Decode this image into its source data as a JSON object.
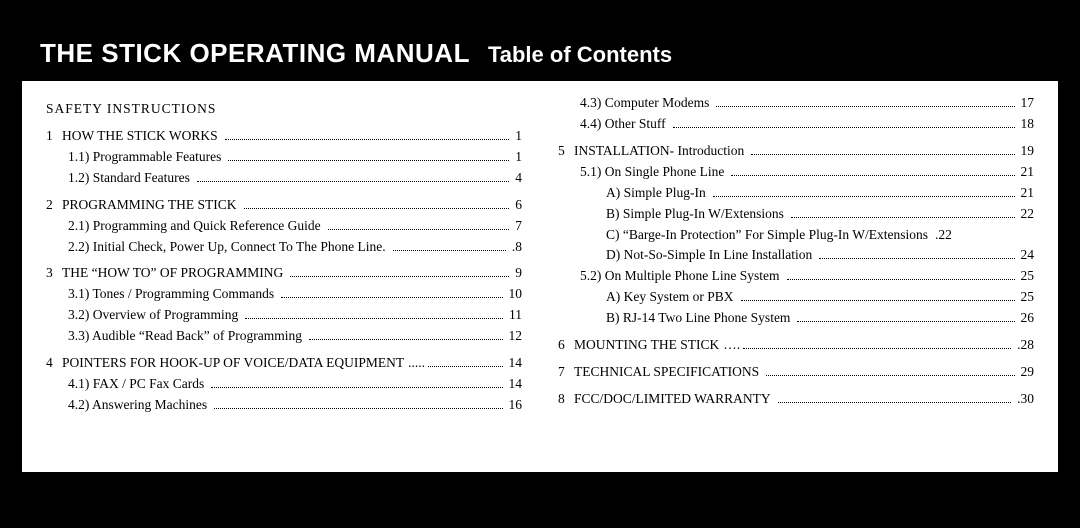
{
  "title": {
    "main": "THE STICK OPERATING MANUAL",
    "sub": "Table of Contents"
  },
  "colors": {
    "page_bg": "#ffffff",
    "outer_bg": "#000000",
    "bar_bg": "#000000",
    "bar_text": "#ffffff",
    "text": "#000000"
  },
  "typography": {
    "title_main_pt": 26,
    "title_main_weight": 900,
    "title_sub_pt": 22,
    "title_sub_weight": 700,
    "body_pt": 13.5
  },
  "left": [
    {
      "level": 0,
      "num": "",
      "label": "SAFETY  INSTRUCTIONS",
      "page": "",
      "no_leader": true,
      "safety": true
    },
    {
      "level": 0,
      "num": "1",
      "label": "HOW  THE  STICK  WORKS",
      "page": "1"
    },
    {
      "level": 1,
      "num": "",
      "label": "1.1)  Programmable  Features",
      "page": "1"
    },
    {
      "level": 1,
      "num": "",
      "label": "1.2) Standard Features",
      "page": "4"
    },
    {
      "level": 0,
      "num": "2",
      "label": "PROGRAMMING  THE  STICK",
      "page": "6"
    },
    {
      "level": 1,
      "num": "",
      "label": "2.1)  Programming  and  Quick  Reference  Guide",
      "page": "7"
    },
    {
      "level": 1,
      "num": "",
      "label": "2.2) Initial Check, Power Up, Connect To The Phone Line.",
      "page": ".8"
    },
    {
      "level": 0,
      "num": "3",
      "label": "THE  “HOW  TO”  OF  PROGRAMMING",
      "page": "9"
    },
    {
      "level": 1,
      "num": "",
      "label": "3.1)  Tones / Programming Commands",
      "page": "10"
    },
    {
      "level": 1,
      "num": "",
      "label": "3.2)  Overview  of  Programming",
      "page": "11"
    },
    {
      "level": 1,
      "num": "",
      "label": "3.3) Audible “Read Back” of Programming",
      "page": "12"
    },
    {
      "level": 0,
      "num": "4",
      "label": "POINTERS  FOR  HOOK-UP  OF  VOICE/DATA  EQUIPMENT",
      "page": "14",
      "ellipsis_prefix": "....."
    },
    {
      "level": 1,
      "num": "",
      "label": "4.1) FAX / PC Fax Cards",
      "page": "14"
    },
    {
      "level": 1,
      "num": "",
      "label": "4.2)  Answering  Machines",
      "page": "16"
    }
  ],
  "right": [
    {
      "level": 1,
      "num": "",
      "label": "4.3)  Computer  Modems",
      "page": "17"
    },
    {
      "level": 1,
      "num": "",
      "label": "4.4) Other Stuff",
      "page": "18"
    },
    {
      "level": 0,
      "num": "5",
      "label": "INSTALLATION-  Introduction",
      "page": "19"
    },
    {
      "level": 1,
      "num": "",
      "label": "5.1) On Single  Phone  Line",
      "page": "21"
    },
    {
      "level": 2,
      "num": "",
      "label": "A)  Simple  Plug-In",
      "page": "21"
    },
    {
      "level": 2,
      "num": "",
      "label": "B)  Simple  Plug-In  W/Extensions",
      "page": "22"
    },
    {
      "level": 2,
      "num": "",
      "label": "C)  “Barge-In Protection” For Simple Plug-In W/Extensions",
      "page": ".22",
      "no_leader": true
    },
    {
      "level": 2,
      "num": "",
      "label": "D)  Not-So-Simple  In  Line  Installation",
      "page": "24"
    },
    {
      "level": 1,
      "num": "",
      "label": "5.2) On  Multiple  Phone  Line  System",
      "page": "25"
    },
    {
      "level": 2,
      "num": "",
      "label": "A) Key System or PBX",
      "page": "25"
    },
    {
      "level": 2,
      "num": "",
      "label": "B) RJ-14 Two Line Phone System",
      "page": "26"
    },
    {
      "level": 0,
      "num": "6",
      "label": "MOUNTING  THE STICK",
      "page": ".28",
      "ellipsis_prefix": "…."
    },
    {
      "level": 0,
      "num": "7",
      "label": "TECHNICAL  SPECIFICATIONS",
      "page": "29"
    },
    {
      "level": 0,
      "num": "8",
      "label": "FCC/DOC/LIMITED  WARRANTY",
      "page": ".30"
    }
  ]
}
